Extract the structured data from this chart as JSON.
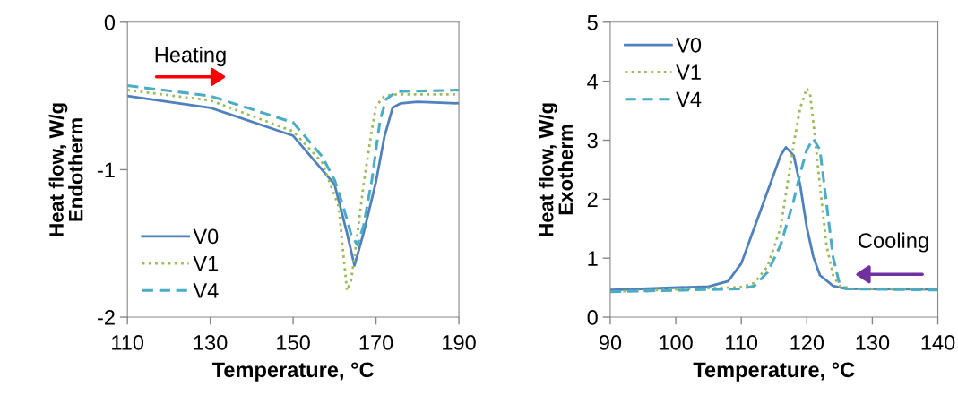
{
  "chart_data": [
    {
      "type": "line",
      "xlabel": "Temperature, °C",
      "ylabel": "Heat flow, W/g\nEndotherm",
      "xlim": [
        110,
        190
      ],
      "xticks": [
        110,
        130,
        150,
        170,
        190
      ],
      "ylim": [
        -2,
        0
      ],
      "yticks": [
        -2,
        -1,
        0
      ],
      "grid": false,
      "legend": "bottom left",
      "annotations": [
        "Heating"
      ],
      "series": [
        {
          "name": "V0",
          "color": "#4f81bd",
          "line_style": "solid",
          "x": [
            110,
            130,
            150,
            160,
            163,
            164.8,
            167,
            170,
            172,
            174,
            176,
            180,
            190
          ],
          "values": [
            -0.5,
            -0.58,
            -0.77,
            -1.1,
            -1.43,
            -1.65,
            -1.43,
            -1.08,
            -0.78,
            -0.58,
            -0.55,
            -0.54,
            -0.55
          ]
        },
        {
          "name": "V1",
          "color": "#9bbb59",
          "line_style": "dotted",
          "x": [
            110,
            130,
            150,
            157,
            161,
            162,
            163,
            164,
            165,
            167,
            169,
            170,
            172,
            175,
            190
          ],
          "values": [
            -0.46,
            -0.53,
            -0.74,
            -0.95,
            -1.25,
            -1.54,
            -1.82,
            -1.75,
            -1.55,
            -1.1,
            -0.73,
            -0.57,
            -0.5,
            -0.49,
            -0.49
          ]
        },
        {
          "name": "V4",
          "color": "#4bacc6",
          "line_style": "dashed",
          "x": [
            110,
            130,
            150,
            157,
            160,
            162,
            164,
            165.5,
            167,
            169,
            171,
            172.5,
            175,
            190
          ],
          "values": [
            -0.43,
            -0.5,
            -0.68,
            -0.91,
            -1.07,
            -1.24,
            -1.44,
            -1.51,
            -1.38,
            -1.07,
            -0.66,
            -0.52,
            -0.47,
            -0.46
          ]
        }
      ]
    },
    {
      "type": "line",
      "xlabel": "Temperature, °C",
      "ylabel": "Heat flow, W/g\nExotherm",
      "xlim": [
        90,
        140
      ],
      "xticks": [
        90,
        100,
        110,
        120,
        130,
        140
      ],
      "ylim": [
        0,
        5
      ],
      "yticks": [
        0,
        1,
        2,
        3,
        4,
        5
      ],
      "grid": false,
      "legend": "top left",
      "annotations": [
        "Cooling"
      ],
      "series": [
        {
          "name": "V0",
          "color": "#4f81bd",
          "line_style": "solid",
          "x": [
            90,
            105,
            108,
            110,
            112,
            114,
            116,
            116.8,
            118,
            119,
            120,
            121,
            122,
            124,
            126,
            140
          ],
          "values": [
            0.46,
            0.52,
            0.61,
            0.91,
            1.52,
            2.13,
            2.74,
            2.88,
            2.74,
            2.23,
            1.52,
            1.02,
            0.71,
            0.53,
            0.48,
            0.47
          ]
        },
        {
          "name": "V1",
          "color": "#9bbb59",
          "line_style": "dotted",
          "x": [
            90,
            110,
            112,
            114,
            116,
            117,
            118,
            119,
            120,
            120.5,
            121,
            122,
            123,
            124,
            125,
            127,
            140
          ],
          "values": [
            0.43,
            0.51,
            0.58,
            0.86,
            1.52,
            2.23,
            2.94,
            3.55,
            3.88,
            3.78,
            3.3,
            2.23,
            1.22,
            0.71,
            0.53,
            0.48,
            0.48
          ]
        },
        {
          "name": "V4",
          "color": "#4bacc6",
          "line_style": "dashed",
          "x": [
            90,
            110,
            112,
            114,
            116,
            118,
            119,
            120,
            121,
            122,
            123,
            124,
            125,
            126,
            140
          ],
          "values": [
            0.43,
            0.48,
            0.53,
            0.76,
            1.22,
            1.98,
            2.44,
            2.84,
            3.02,
            2.84,
            1.93,
            1.02,
            0.56,
            0.48,
            0.46
          ]
        }
      ]
    }
  ]
}
